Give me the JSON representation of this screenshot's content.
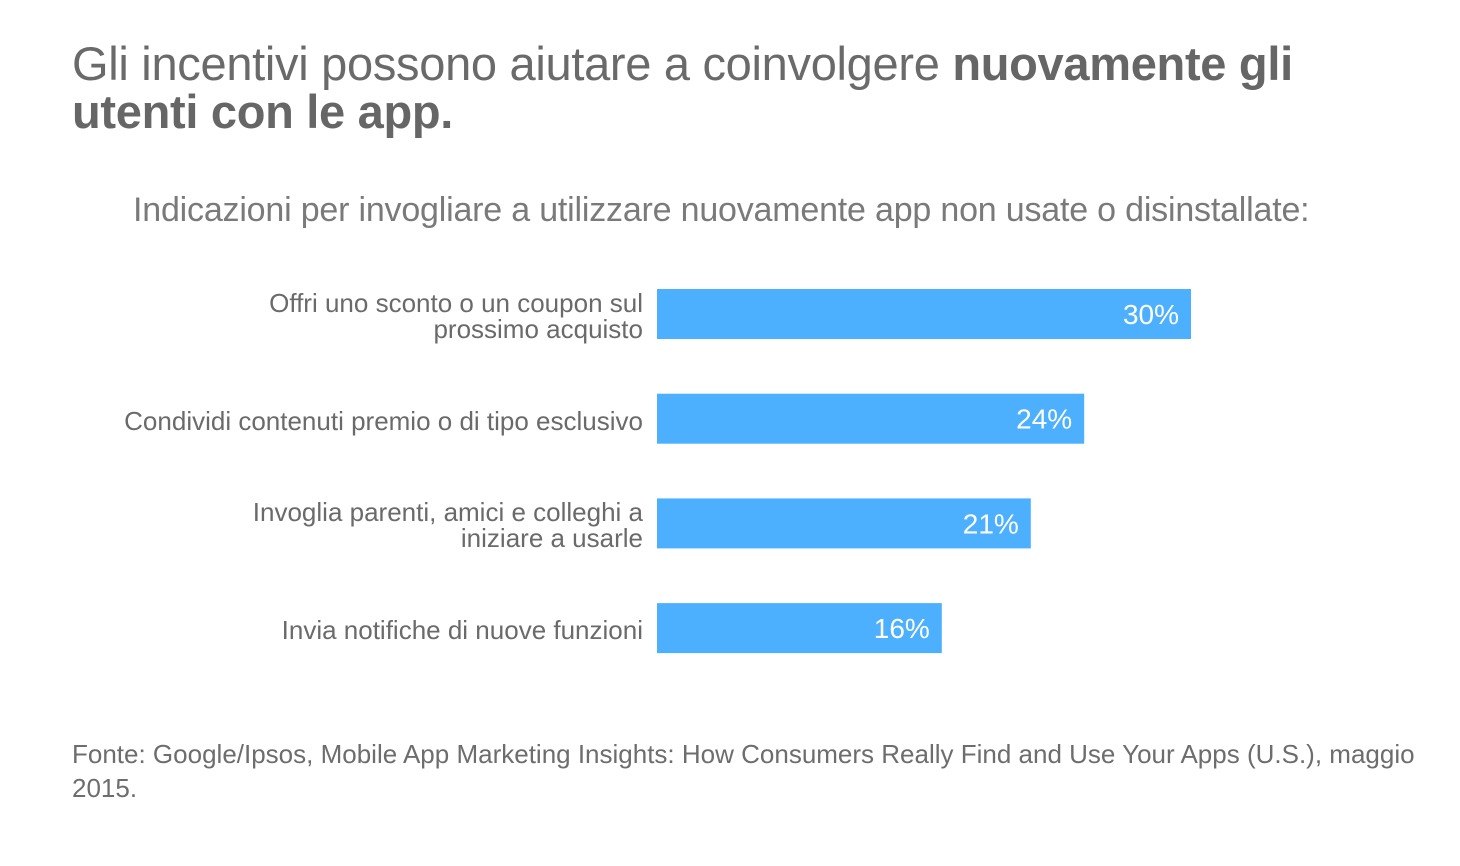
{
  "title": {
    "regular": "Gli incentivi possono aiutare a coinvolgere ",
    "bold": "nuovamente gli utenti con le app."
  },
  "colors": {
    "bar": "#4db0ff",
    "bar_label": "#ffffff",
    "text": "#6a6a6a"
  },
  "chart_data": {
    "type": "bar",
    "orientation": "horizontal",
    "title": "Indicazioni per invogliare a utilizzare nuovamente app non usate o disinstallate:",
    "categories": [
      "Offri uno sconto o un coupon sul prossimo acquisto",
      "Condividi contenuti premio o di tipo esclusivo",
      "Invoglia parenti, amici e colleghi a iniziare a usarle",
      "Invia notifiche di nuove funzioni"
    ],
    "category_lines": [
      [
        "Offri uno sconto o un coupon sul",
        "prossimo acquisto"
      ],
      [
        "Condividi contenuti premio o di tipo esclusivo"
      ],
      [
        "Invoglia parenti, amici e colleghi a",
        "iniziare a usarle"
      ],
      [
        "Invia notifiche di nuove funzioni"
      ]
    ],
    "values": [
      30,
      24,
      21,
      16
    ],
    "value_labels": [
      "30%",
      "24%",
      "21%",
      "16%"
    ],
    "unit": "%",
    "grid": false,
    "legend": "none"
  },
  "source": "Fonte: Google/Ipsos, Mobile App Marketing Insights: How Consumers Really Find and Use Your Apps (U.S.), maggio 2015."
}
